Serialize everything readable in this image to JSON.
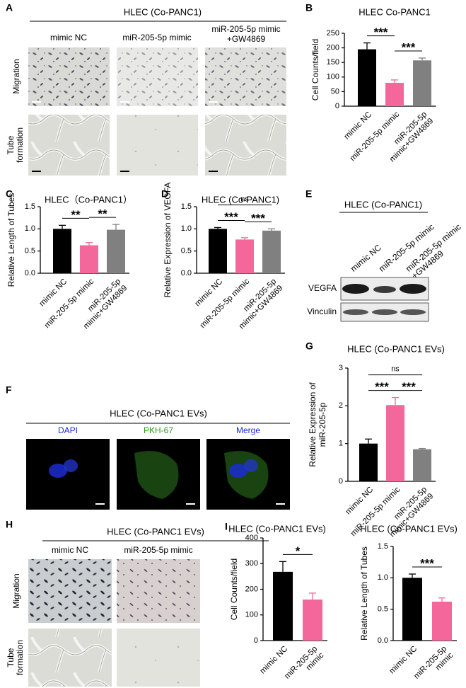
{
  "figure": {
    "A": {
      "label": "A",
      "header": "HLEC (Co-PANC1)",
      "columns": [
        "mimic NC",
        "miR-205-5p mimic",
        [
          "miR-205-5p mimic",
          "+GW4869"
        ]
      ],
      "rows": [
        "Migration",
        [
          "Tube",
          "formation"
        ]
      ]
    },
    "E": {
      "label": "E",
      "header": "HLEC (Co-PANC1)",
      "columns": [
        "mimic NC",
        "miR-205-5p mimic",
        [
          "miR-205-5p mimic",
          "+GW4869"
        ]
      ],
      "rows": [
        "VEGFA",
        "Vinculin"
      ]
    },
    "F": {
      "label": "F",
      "header": "HLEC (Co-PANC1 EVs)",
      "columns": [
        "DAPI",
        "PKH-67",
        "Merge"
      ]
    },
    "H": {
      "label": "H",
      "header": "HLEC (Co-PANC1 EVs)",
      "columns": [
        "mimic NC",
        "miR-205-5p mimic"
      ],
      "rows": [
        "Migration",
        [
          "Tube",
          "formation"
        ]
      ]
    }
  },
  "chart_data": [
    {
      "type": "bar",
      "panel": "B",
      "title": "HLEC Co-PANC1",
      "y_label": "Cell Counts/field",
      "categories": [
        "mimic NC",
        "miR-205-5p mimic",
        [
          "miR-205-5p",
          "mimic+GW4869"
        ]
      ],
      "values": [
        195,
        80,
        157
      ],
      "errors": [
        22,
        10,
        8
      ],
      "colors": [
        "#000000",
        "#f4679a",
        "#808080"
      ],
      "ylim": [
        0,
        250
      ],
      "yticks": [
        0,
        50,
        100,
        150,
        200,
        250
      ],
      "annotations": [
        {
          "text": "***",
          "between": [
            0,
            1
          ]
        },
        {
          "text": "***",
          "between": [
            1,
            2
          ]
        }
      ]
    },
    {
      "type": "bar",
      "panel": "C",
      "title": "HLEC（Co-PANC1）",
      "y_label": "Relative Length of Tubes",
      "categories": [
        "mimic NC",
        "miR-205-5p mimic",
        [
          "miR-205-5p",
          "mimic+GW4869"
        ]
      ],
      "values": [
        1.0,
        0.63,
        0.98
      ],
      "errors": [
        0.08,
        0.06,
        0.12
      ],
      "colors": [
        "#000000",
        "#f4679a",
        "#808080"
      ],
      "ylim": [
        0,
        1.5
      ],
      "yticks": [
        {
          "value": 0,
          "label": "0.0"
        },
        0.5,
        {
          "value": 1,
          "label": "1.0"
        },
        1.5
      ],
      "annotations": [
        {
          "text": "**",
          "between": [
            0,
            1
          ]
        },
        {
          "text": "**",
          "between": [
            1,
            2
          ]
        }
      ]
    },
    {
      "type": "bar",
      "panel": "D",
      "title": "HLEC (Co-PANC1)",
      "y_label": "Relative Expression of VEGFA",
      "categories": [
        "mimic NC",
        "miR-205-5p mimic",
        [
          "miR-205-5p",
          "mimic+GW4869"
        ]
      ],
      "values": [
        1.0,
        0.76,
        0.96
      ],
      "errors": [
        0.03,
        0.04,
        0.04
      ],
      "colors": [
        "#000000",
        "#f4679a",
        "#808080"
      ],
      "ylim": [
        0,
        1.5
      ],
      "yticks": [
        {
          "value": 0,
          "label": "0.0"
        },
        0.5,
        {
          "value": 1,
          "label": "1.0"
        },
        1.5
      ],
      "annotations": [
        {
          "text": "***",
          "between": [
            0,
            1
          ]
        },
        {
          "text": "***",
          "between": [
            1,
            2
          ]
        },
        {
          "text": "ns",
          "between": [
            0,
            2
          ]
        }
      ]
    },
    {
      "type": "bar",
      "panel": "G",
      "title": "HLEC (Co-PANC1 EVs)",
      "y_label": [
        "Relative Expression of",
        "miR-205-5p"
      ],
      "categories": [
        "mimic NC",
        "miR-205-5p mimic",
        [
          "miR-205-5p",
          "mimic+GW4869"
        ]
      ],
      "values": [
        1.0,
        2.02,
        0.85
      ],
      "errors": [
        0.12,
        0.2,
        0.02
      ],
      "colors": [
        "#000000",
        "#f4679a",
        "#808080"
      ],
      "ylim": [
        0,
        3
      ],
      "yticks": [
        0,
        1,
        2,
        3
      ],
      "annotations": [
        {
          "text": "***",
          "between": [
            0,
            1
          ]
        },
        {
          "text": "***",
          "between": [
            1,
            2
          ]
        },
        {
          "text": "ns",
          "between": [
            0,
            2
          ]
        }
      ]
    },
    {
      "type": "bar",
      "panel": "I",
      "title": "HLEC (Co-PANC1 EVs)",
      "y_label": "Cell Counts/field",
      "categories": [
        "mimic NC",
        [
          "miR-205-5p",
          "mimic"
        ]
      ],
      "values": [
        268,
        160
      ],
      "errors": [
        40,
        25
      ],
      "colors": [
        "#000000",
        "#f4679a"
      ],
      "ylim": [
        0,
        400
      ],
      "yticks": [
        0,
        100,
        200,
        300,
        400
      ],
      "annotations": [
        {
          "text": "*",
          "between": [
            0,
            1
          ]
        }
      ]
    },
    {
      "type": "bar",
      "title": "HLEC (Co-PANC1 EVs)",
      "y_label": "Relative Length of Tubes",
      "categories": [
        "mimic NC",
        [
          "miR-205-5p",
          "mimic"
        ]
      ],
      "values": [
        1.0,
        0.62
      ],
      "errors": [
        0.06,
        0.06
      ],
      "colors": [
        "#000000",
        "#f4679a"
      ],
      "ylim": [
        0,
        1.5
      ],
      "yticks": [
        {
          "value": 0,
          "label": "0.0"
        },
        0.5,
        {
          "value": 1,
          "label": "1.0"
        },
        1.5
      ],
      "annotations": [
        {
          "text": "***",
          "between": [
            0,
            1
          ]
        }
      ]
    }
  ]
}
